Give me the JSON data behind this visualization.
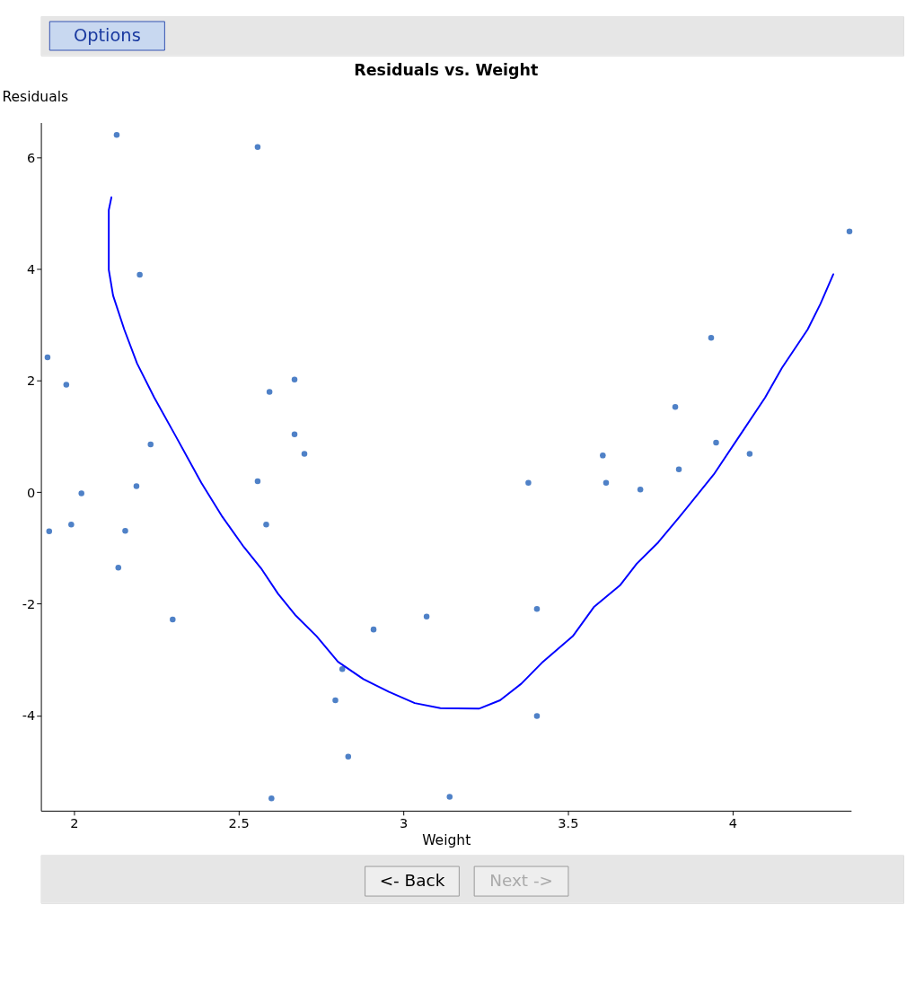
{
  "chart_data": {
    "type": "scatter",
    "title": "Residuals vs. Weight",
    "xlabel": "Weight",
    "ylabel": "Residuals",
    "xlim": [
      1.9,
      4.36
    ],
    "ylim": [
      -5.71,
      6.63
    ],
    "xticks": [
      2,
      2.5,
      3,
      3.5,
      4
    ],
    "yticks": [
      -4,
      -2,
      0,
      2,
      4,
      6
    ],
    "grid": false,
    "annotations": [
      "Options",
      "<- Back",
      "Next ->"
    ],
    "series": [
      {
        "color": "#4f81c7",
        "marker": "circle",
        "x": [
          1.92,
          1.925,
          1.977,
          1.992,
          2.023,
          2.13,
          2.135,
          2.156,
          2.19,
          2.2,
          2.233,
          2.3,
          2.558,
          2.558,
          2.584,
          2.594,
          2.6,
          2.67,
          2.67,
          2.7,
          2.794,
          2.815,
          2.833,
          2.91,
          3.071,
          3.141,
          3.38,
          3.406,
          3.406,
          3.606,
          3.616,
          3.72,
          3.826,
          3.837,
          3.935,
          3.95,
          4.052,
          4.355
        ],
        "values": [
          2.42,
          -0.7,
          1.93,
          -0.58,
          -0.02,
          6.41,
          -1.35,
          -0.69,
          0.11,
          3.9,
          0.86,
          -2.28,
          6.19,
          0.2,
          -0.58,
          1.8,
          -5.49,
          2.02,
          1.04,
          0.69,
          -3.73,
          -3.17,
          -4.74,
          -2.46,
          -2.23,
          -5.46,
          0.17,
          -2.09,
          -4.01,
          0.66,
          0.17,
          0.05,
          1.53,
          0.41,
          2.77,
          0.89,
          0.69,
          4.68
        ]
      },
      {
        "type": "line",
        "color": "#0000ff",
        "marker": "none",
        "line_style": "solid",
        "x": [
          2.114,
          2.106,
          2.106,
          2.119,
          2.153,
          2.192,
          2.244,
          2.309,
          2.387,
          2.451,
          2.516,
          2.568,
          2.62,
          2.672,
          2.737,
          2.802,
          2.879,
          2.957,
          3.035,
          3.113,
          3.23,
          3.294,
          3.359,
          3.424,
          3.515,
          3.58,
          3.658,
          3.709,
          3.774,
          3.839,
          3.943,
          4.021,
          4.099,
          4.15,
          4.228,
          4.267,
          4.306
        ],
        "values": [
          5.29,
          5.06,
          3.99,
          3.53,
          2.92,
          2.31,
          1.7,
          1.01,
          0.17,
          -0.44,
          -0.98,
          -1.36,
          -1.82,
          -2.2,
          -2.58,
          -3.04,
          -3.35,
          -3.58,
          -3.78,
          -3.87,
          -3.88,
          -3.73,
          -3.43,
          -3.04,
          -2.58,
          -2.05,
          -1.67,
          -1.28,
          -0.9,
          -0.44,
          0.32,
          1.01,
          1.7,
          2.23,
          2.92,
          3.38,
          3.91
        ]
      }
    ]
  }
}
